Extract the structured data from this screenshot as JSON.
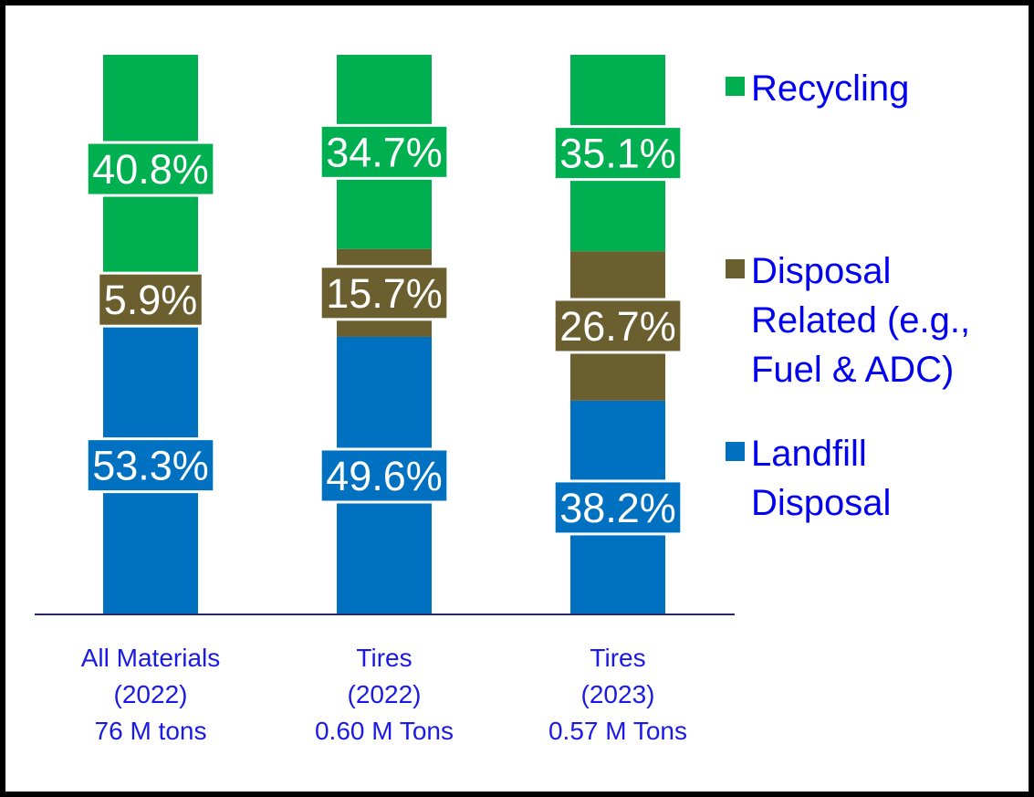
{
  "chart_data": {
    "type": "stacked_bar",
    "categories": [
      "All Materials\n(2022)\n76 M tons",
      "Tires\n(2022)\n0.60 M Tons",
      "Tires\n(2023)\n0.57 M Tons"
    ],
    "series": [
      {
        "name": "Landfill\nDisposal",
        "color": "#0070c0",
        "values": [
          53.3,
          49.6,
          38.2
        ],
        "value_labels": [
          "53.3%",
          "49.6%",
          "38.2%"
        ]
      },
      {
        "name": "Disposal\nRelated (e.g.,\nFuel & ADC)",
        "color": "#6b5f2f",
        "values": [
          5.9,
          15.7,
          26.7
        ],
        "value_labels": [
          "5.9%",
          "15.7%",
          "26.7%"
        ]
      },
      {
        "name": "Recycling",
        "color": "#00b050",
        "values": [
          40.8,
          34.7,
          35.1
        ],
        "value_labels": [
          "40.8%",
          "34.7%",
          "35.1%"
        ]
      }
    ],
    "ylim": [
      0,
      100
    ]
  }
}
